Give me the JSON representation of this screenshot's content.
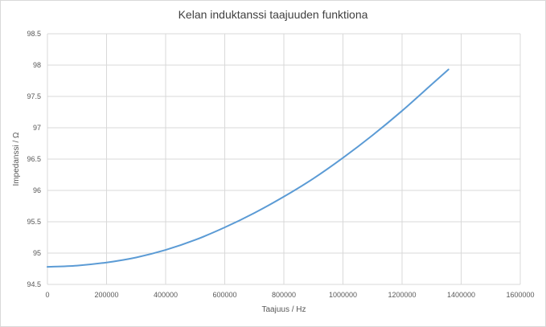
{
  "chart_data": {
    "type": "line",
    "title": "Kelan induktanssi taajuuden funktiona",
    "xlabel": "Taajuus / Hz",
    "ylabel": "Impedanssi / Ω",
    "xlim": [
      0,
      1600000
    ],
    "ylim": [
      94.5,
      98.5
    ],
    "xticks": [
      "0",
      "200000",
      "400000",
      "600000",
      "800000",
      "1000000",
      "1200000",
      "1400000",
      "1600000"
    ],
    "yticks": [
      "94.5",
      "95",
      "95.5",
      "96",
      "96.5",
      "97",
      "97.5",
      "98",
      "98.5"
    ],
    "grid": true,
    "legend": "none",
    "line_color": "#5b9bd5",
    "series": [
      {
        "x": [
          0,
          100000,
          200000,
          300000,
          400000,
          500000,
          600000,
          700000,
          800000,
          900000,
          1000000,
          1100000,
          1200000,
          1300000,
          1357000
        ],
        "values": [
          94.78,
          94.8,
          94.85,
          94.93,
          95.05,
          95.21,
          95.41,
          95.64,
          95.9,
          96.19,
          96.52,
          96.88,
          97.27,
          97.69,
          97.93
        ]
      }
    ]
  }
}
